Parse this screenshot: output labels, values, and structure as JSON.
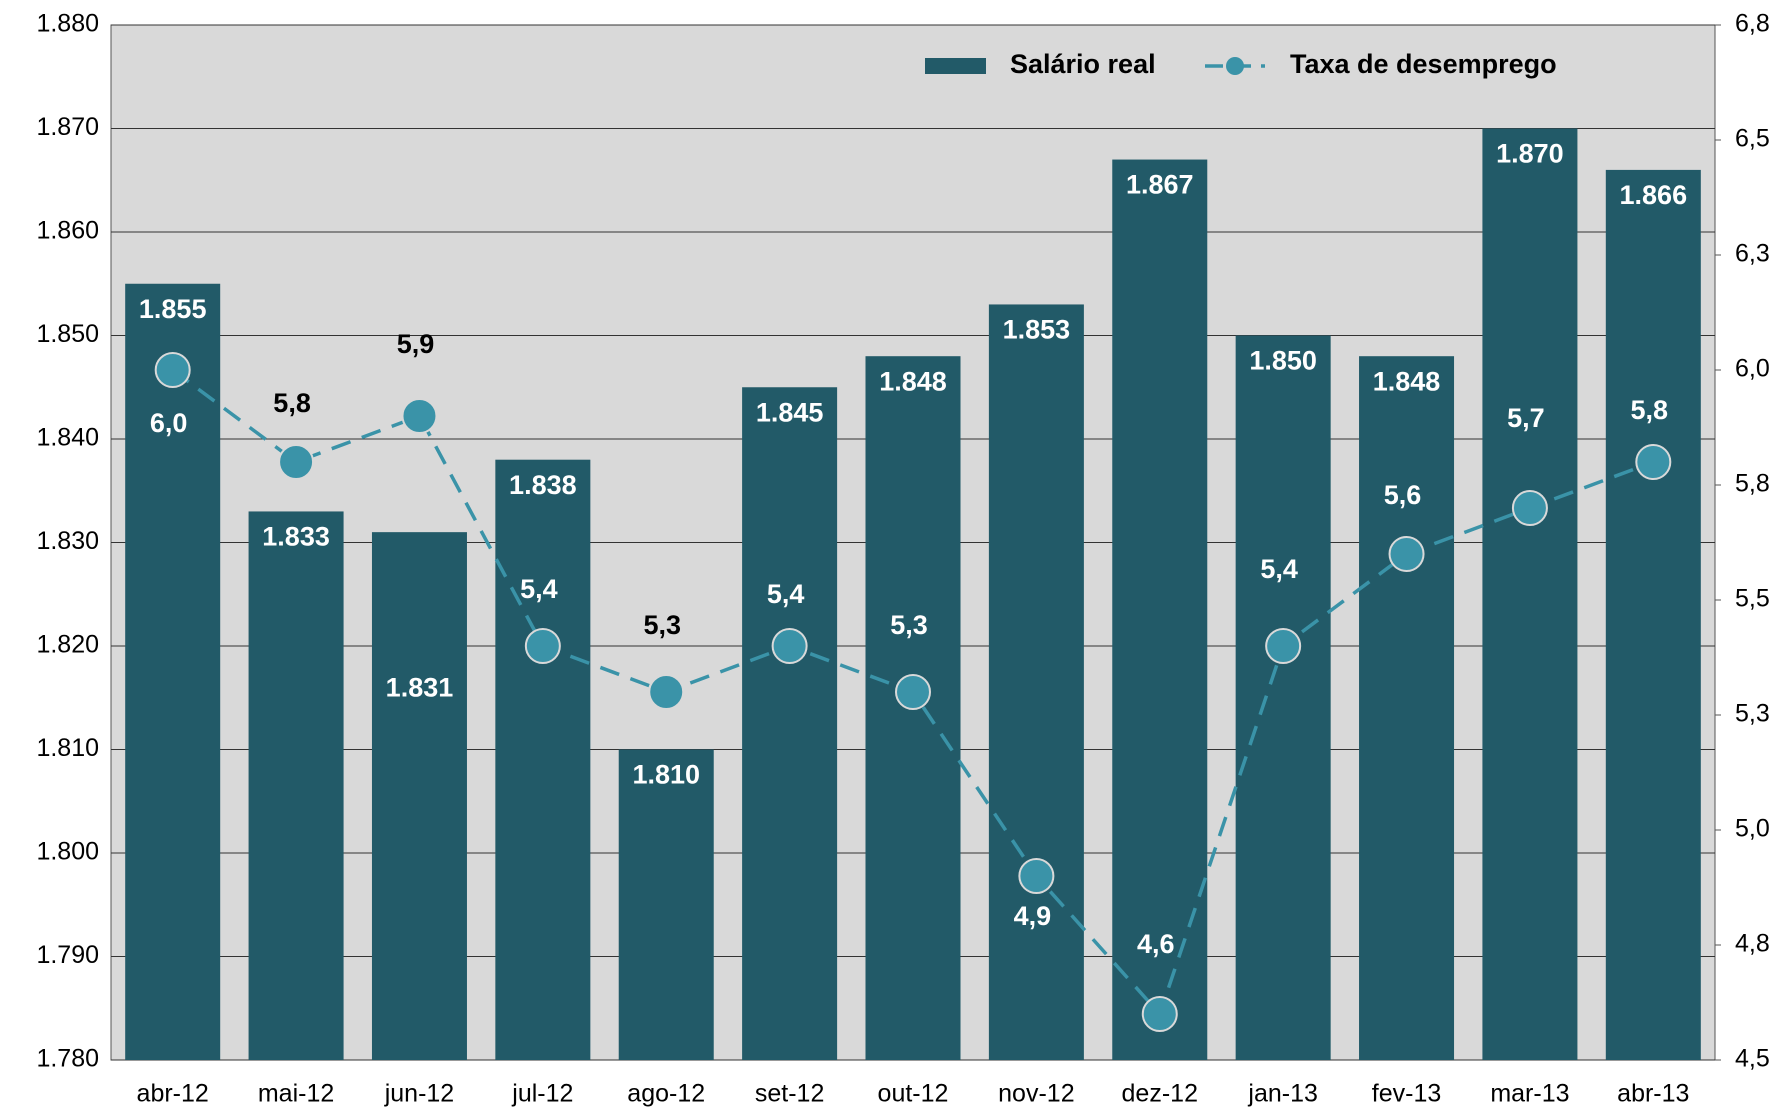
{
  "chart_data": {
    "type": "bar-line",
    "categories": [
      "abr-12",
      "mai-12",
      "jun-12",
      "jul-12",
      "ago-12",
      "set-12",
      "out-12",
      "nov-12",
      "dez-12",
      "jan-13",
      "fev-13",
      "mar-13",
      "abr-13"
    ],
    "series": [
      {
        "name": "Salário real",
        "type": "bar",
        "color": "#225a68",
        "values": [
          1855,
          1833,
          1831,
          1838,
          1810,
          1845,
          1848,
          1853,
          1867,
          1850,
          1848,
          1870,
          1866
        ],
        "value_labels": [
          "1.855",
          "1.833",
          "1.831",
          "1.838",
          "1.810",
          "1.845",
          "1.848",
          "1.853",
          "1.867",
          "1.850",
          "1.848",
          "1.870",
          "1.866"
        ]
      },
      {
        "name": "Taxa de desemprego",
        "type": "line",
        "axis": "y2",
        "color": "#3a93a8",
        "values": [
          6.0,
          5.8,
          5.9,
          5.4,
          5.3,
          5.4,
          5.3,
          4.9,
          4.6,
          5.4,
          5.6,
          5.7,
          5.8
        ],
        "value_labels": [
          "6,0",
          "5,8",
          "5,9",
          "5,4",
          "5,3",
          "5,4",
          "5,3",
          "4,9",
          "4,6",
          "5,4",
          "5,6",
          "5,7",
          "5,8"
        ]
      }
    ],
    "ylim": [
      1780,
      1880
    ],
    "yticks": [
      {
        "value": 1780,
        "label": "1.780"
      },
      {
        "value": 1790,
        "label": "1.790"
      },
      {
        "value": 1800,
        "label": "1.800"
      },
      {
        "value": 1810,
        "label": "1.810"
      },
      {
        "value": 1820,
        "label": "1.820"
      },
      {
        "value": 1830,
        "label": "1.830"
      },
      {
        "value": 1840,
        "label": "1.840"
      },
      {
        "value": 1850,
        "label": "1.850"
      },
      {
        "value": 1860,
        "label": "1.860"
      },
      {
        "value": 1870,
        "label": "1.870"
      },
      {
        "value": 1880,
        "label": "1.880"
      }
    ],
    "y2lim": [
      4.5,
      6.75
    ],
    "y2ticks": [
      {
        "value": 4.5,
        "label": "4,5"
      },
      {
        "value": 4.75,
        "label": "4,8"
      },
      {
        "value": 5.0,
        "label": "5,0"
      },
      {
        "value": 5.25,
        "label": "5,3"
      },
      {
        "value": 5.5,
        "label": "5,5"
      },
      {
        "value": 5.75,
        "label": "5,8"
      },
      {
        "value": 6.0,
        "label": "6,0"
      },
      {
        "value": 6.25,
        "label": "6,3"
      },
      {
        "value": 6.5,
        "label": "6,5"
      },
      {
        "value": 6.75,
        "label": "6,8"
      }
    ],
    "grid": true,
    "legend": "top-right"
  }
}
